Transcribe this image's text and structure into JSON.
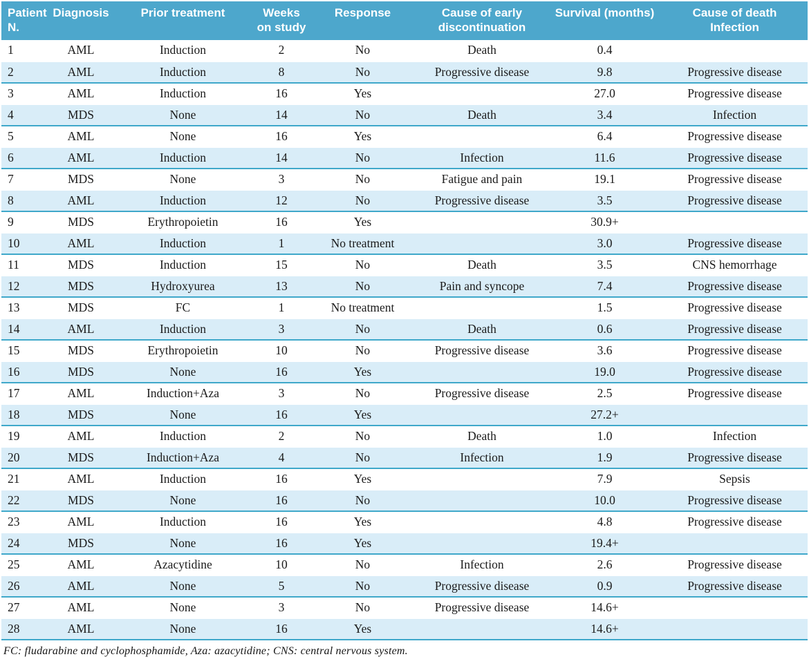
{
  "table": {
    "headers": [
      "Patient\nN.",
      "Diagnosis",
      "Prior treatment",
      "Weeks\non study",
      "Response",
      "Cause of early\ndiscontinuation",
      "Survival (months)",
      "Cause of death\nInfection"
    ],
    "rows": [
      [
        "1",
        "AML",
        "Induction",
        "2",
        "No",
        "Death",
        "0.4",
        ""
      ],
      [
        "2",
        "AML",
        "Induction",
        "8",
        "No",
        "Progressive disease",
        "9.8",
        "Progressive disease"
      ],
      [
        "3",
        "AML",
        "Induction",
        "16",
        "Yes",
        "",
        "27.0",
        "Progressive disease"
      ],
      [
        "4",
        "MDS",
        "None",
        "14",
        "No",
        "Death",
        "3.4",
        "Infection"
      ],
      [
        "5",
        "AML",
        "None",
        "16",
        "Yes",
        "",
        "6.4",
        "Progressive disease"
      ],
      [
        "6",
        "AML",
        "Induction",
        "14",
        "No",
        "Infection",
        "11.6",
        "Progressive disease"
      ],
      [
        "7",
        "MDS",
        "None",
        "3",
        "No",
        "Fatigue and pain",
        "19.1",
        "Progressive disease"
      ],
      [
        "8",
        "AML",
        "Induction",
        "12",
        "No",
        "Progressive disease",
        "3.5",
        "Progressive disease"
      ],
      [
        "9",
        "MDS",
        "Erythropoietin",
        "16",
        "Yes",
        "",
        "30.9+",
        ""
      ],
      [
        "10",
        "AML",
        "Induction",
        "1",
        "No treatment",
        "",
        "3.0",
        "Progressive disease"
      ],
      [
        "11",
        "MDS",
        "Induction",
        "15",
        "No",
        "Death",
        "3.5",
        "CNS hemorrhage"
      ],
      [
        "12",
        "MDS",
        "Hydroxyurea",
        "13",
        "No",
        "Pain and syncope",
        "7.4",
        "Progressive disease"
      ],
      [
        "13",
        "MDS",
        "FC",
        "1",
        "No treatment",
        "",
        "1.5",
        "Progressive disease"
      ],
      [
        "14",
        "AML",
        "Induction",
        "3",
        "No",
        "Death",
        "0.6",
        "Progressive disease"
      ],
      [
        "15",
        "MDS",
        "Erythropoietin",
        "10",
        "No",
        "Progressive disease",
        "3.6",
        "Progressive disease"
      ],
      [
        "16",
        "MDS",
        "None",
        "16",
        "Yes",
        "",
        "19.0",
        "Progressive disease"
      ],
      [
        "17",
        "AML",
        "Induction+Aza",
        "3",
        "No",
        "Progressive disease",
        "2.5",
        "Progressive disease"
      ],
      [
        "18",
        "MDS",
        "None",
        "16",
        "Yes",
        "",
        "27.2+",
        ""
      ],
      [
        "19",
        "AML",
        "Induction",
        "2",
        "No",
        "Death",
        "1.0",
        "Infection"
      ],
      [
        "20",
        "MDS",
        "Induction+Aza",
        "4",
        "No",
        "Infection",
        "1.9",
        "Progressive disease"
      ],
      [
        "21",
        "AML",
        "Induction",
        "16",
        "Yes",
        "",
        "7.9",
        "Sepsis"
      ],
      [
        "22",
        "MDS",
        "None",
        "16",
        "No",
        "",
        "10.0",
        "Progressive disease"
      ],
      [
        "23",
        "AML",
        "Induction",
        "16",
        "Yes",
        "",
        "4.8",
        "Progressive disease"
      ],
      [
        "24",
        "MDS",
        "None",
        "16",
        "Yes",
        "",
        "19.4+",
        ""
      ],
      [
        "25",
        "AML",
        "Azacytidine",
        "10",
        "No",
        "Infection",
        "2.6",
        "Progressive disease"
      ],
      [
        "26",
        "AML",
        "None",
        "5",
        "No",
        "Progressive disease",
        "0.9",
        "Progressive disease"
      ],
      [
        "27",
        "AML",
        "None",
        "3",
        "No",
        "Progressive disease",
        "14.6+",
        ""
      ],
      [
        "28",
        "AML",
        "None",
        "16",
        "Yes",
        "",
        "14.6+",
        ""
      ]
    ]
  },
  "footnote": "FC: fludarabine and cyclophosphamide, Aza: azacytidine; CNS: central nervous system.",
  "colors": {
    "header_bg": "#4da7cc",
    "stripe_bg": "#d9edf8",
    "stripe_border": "#3fa8ca",
    "header_text": "#ffffff",
    "body_text": "#1b1b1b"
  }
}
